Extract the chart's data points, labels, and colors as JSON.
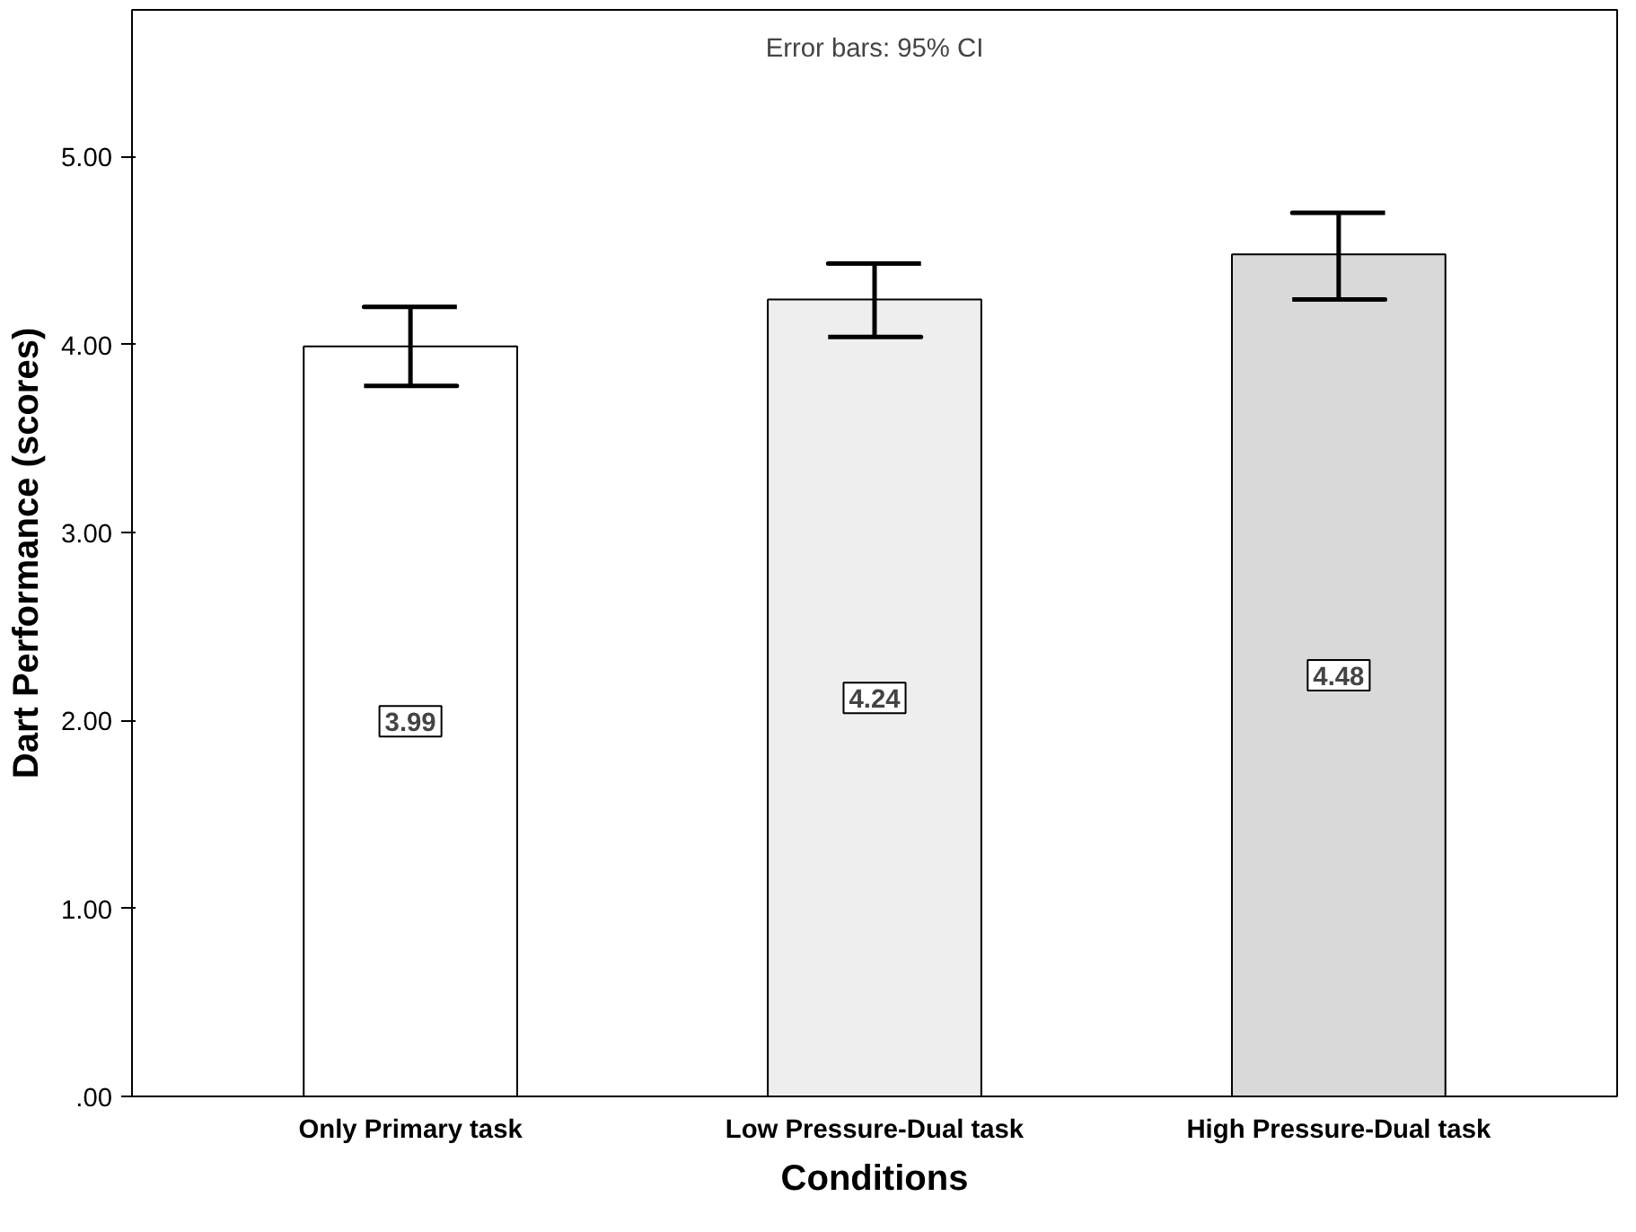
{
  "chart_data": {
    "type": "bar",
    "xlabel": "Conditions",
    "ylabel": "Dart Performance (scores)",
    "annotations": [
      "Error bars: 95% CI"
    ],
    "categories": [
      "Only Primary task",
      "Low Pressure-Dual task",
      "High Pressure-Dual task"
    ],
    "values": [
      3.99,
      4.24,
      4.48
    ],
    "colors": [
      "#ffffff",
      "#eeeeee",
      "#d9d9d9"
    ],
    "errors": [
      [
        3.78,
        4.2
      ],
      [
        4.04,
        4.43
      ],
      [
        4.24,
        4.7
      ]
    ],
    "data_labels": true,
    "ylim": [
      0,
      5.78
    ],
    "yticks": [
      {
        "value": 0,
        "label": ".00"
      },
      {
        "value": 1,
        "label": "1.00"
      },
      {
        "value": 2,
        "label": "2.00"
      },
      {
        "value": 3,
        "label": "3.00"
      },
      {
        "value": 4,
        "label": "4.00"
      },
      {
        "value": 5,
        "label": "5.00"
      }
    ],
    "grid": false
  }
}
